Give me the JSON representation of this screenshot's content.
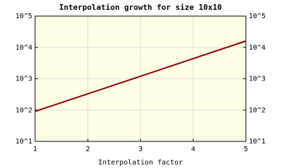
{
  "chart_data": {
    "type": "line",
    "title": "Interpolation growth for size 10x10",
    "x_label": "Interpolation factor",
    "x": [
      1,
      2,
      3,
      4,
      5
    ],
    "series": [
      {
        "color": "#8b0000",
        "values": [
          91,
          330,
          1200,
          4400,
          16000
        ]
      }
    ],
    "xlim": [
      1,
      5
    ],
    "xticks": [
      1,
      2,
      3,
      4,
      5
    ],
    "ylim": [
      10,
      100000
    ],
    "yscale": "log",
    "yticks": [
      {
        "value": 10,
        "label": "10^1"
      },
      {
        "value": 100,
        "label": "10^2"
      },
      {
        "value": 1000,
        "label": "10^3"
      },
      {
        "value": 10000,
        "label": "10^4"
      },
      {
        "value": 100000,
        "label": "10^5"
      }
    ],
    "grid": true,
    "background": "#ffffe6"
  }
}
